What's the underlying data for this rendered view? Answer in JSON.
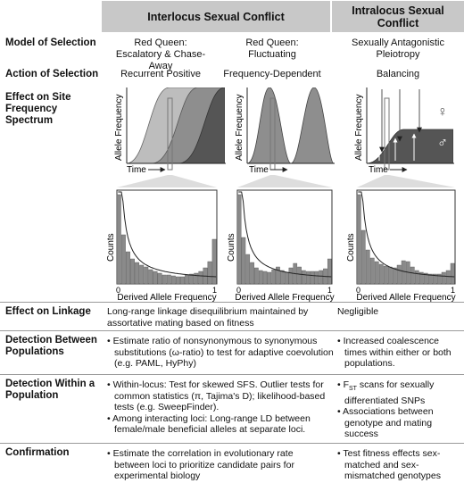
{
  "header": {
    "inter": "Interlocus Sexual Conflict",
    "intra_line1": "Intralocus Sexual",
    "intra_line2": "Conflict"
  },
  "rows": {
    "model": {
      "label": "Model of Selection",
      "col1_line1": "Red Queen:",
      "col1_line2": "Escalatory & Chase-Away",
      "col2_line1": "Red Queen:",
      "col2_line2": "Fluctuating",
      "col3_line1": "Sexually Antagonistic",
      "col3_line2": "Pleiotropy"
    },
    "action": {
      "label": "Action of Selection",
      "col1": "Recurrent Positive",
      "col2": "Frequency-Dependent",
      "col3": "Balancing"
    },
    "sfs": {
      "label_line1": "Effect on Site",
      "label_line2": "Frequency",
      "label_line3": "Spectrum"
    },
    "linkage": {
      "label": "Effect on Linkage",
      "inter_line1": "Long-range linkage disequilibrium maintained by",
      "inter_line2": "assortative mating based on fitness",
      "intra": "Negligible"
    },
    "between": {
      "label_line1": "Detection Between",
      "label_line2": "Populations",
      "inter": [
        "• Estimate ratio of nonsynonymous to synonymous",
        "substitutions (ω-ratio) to test for adaptive coevolution",
        "(e.g. PAML, HyPhy)"
      ],
      "intra": [
        "• Increased coalescence",
        "times within either or both",
        "populations."
      ]
    },
    "within": {
      "label_line1": "Detection Within a",
      "label_line2": "Population",
      "inter": [
        "• Within-locus: Test for skewed SFS. Outlier tests for",
        "common statistics (π, Tajima's D); likelihood-based",
        "tests (e.g. SweepFinder).",
        "• Among interacting loci: Long-range LD between",
        "female/male beneficial alleles at separate loci."
      ],
      "intra_fst_prefix": "• F",
      "intra_fst_sub": "ST",
      "intra_fst_suffix": " scans for sexually",
      "intra_rest": [
        "differentiated SNPs",
        "• Associations between",
        "genotype and mating",
        "success"
      ]
    },
    "confirmation": {
      "label": "Confirmation",
      "inter": [
        "• Estimate the correlation in evolutionary rate",
        "between loci to prioritize candidate pairs for",
        "experimental biology"
      ],
      "intra": [
        "• Test fitness effects sex-",
        "matched and sex-",
        "mismatched genotypes"
      ]
    }
  },
  "plots": {
    "allele_frequency": "Allele Frequency",
    "time": "Time",
    "female_symbol": "♀",
    "male_symbol": "♂"
  },
  "histograms": {
    "counts": "Counts",
    "xlabel": "Derived Allele Frequency",
    "tick0": "0",
    "tick1": "1",
    "panels": [
      {
        "id": "recurrent-positive",
        "bars": [
          10,
          5.5,
          3.6,
          2.8,
          2.4,
          2.1,
          1.9,
          1.6,
          1.4,
          1.2,
          1.0,
          1.0,
          0.9,
          0.8,
          0.8,
          1.0,
          1.1,
          1.2,
          1.4,
          1.8,
          2.5,
          5.0
        ]
      },
      {
        "id": "frequency-dependent",
        "bars": [
          10,
          5.2,
          3.3,
          2.4,
          1.8,
          1.5,
          1.4,
          1.3,
          1.6,
          1.9,
          1.5,
          1.3,
          1.8,
          2.3,
          1.9,
          1.5,
          1.4,
          1.4,
          1.4,
          1.5,
          1.7,
          2.8
        ]
      },
      {
        "id": "balancing",
        "bars": [
          10,
          6.0,
          3.8,
          2.9,
          2.5,
          2.2,
          2.0,
          1.9,
          1.8,
          2.1,
          2.6,
          2.5,
          1.9,
          1.5,
          1.3,
          1.2,
          1.1,
          1.1,
          1.1,
          1.3,
          1.5,
          2.3
        ]
      }
    ]
  },
  "colors": {
    "header_bg": "#c8c8c8",
    "light_gray": "#bdbdbd",
    "mid_gray": "#8e8e8e",
    "dark_gray": "#555555",
    "bar_gray": "#8a8a8a"
  }
}
